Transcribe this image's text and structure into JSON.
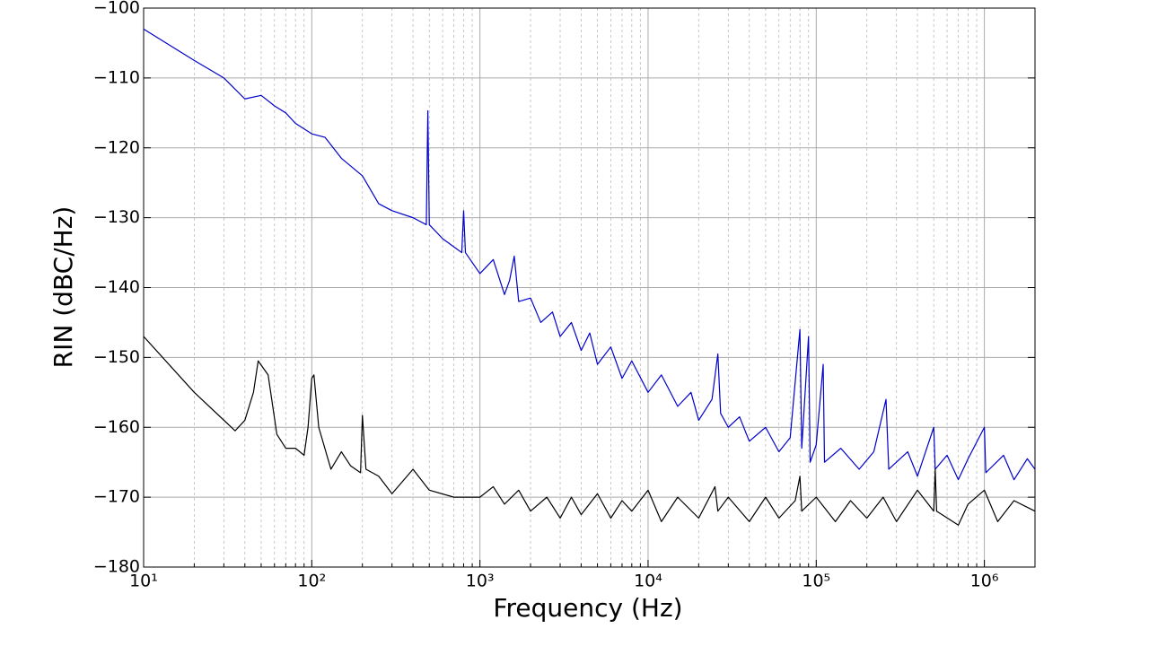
{
  "chart_data": {
    "type": "line",
    "xlabel": "Frequency (Hz)",
    "ylabel": "RIN (dBC/Hz)",
    "xscale": "log",
    "grid": true,
    "xlim": [
      10,
      2000000
    ],
    "ylim": [
      -180,
      -100
    ],
    "xticks": [
      {
        "value": 10,
        "label": "10¹"
      },
      {
        "value": 100,
        "label": "10²"
      },
      {
        "value": 1000,
        "label": "10³"
      },
      {
        "value": 10000,
        "label": "10⁴"
      },
      {
        "value": 100000,
        "label": "10⁵"
      },
      {
        "value": 1000000,
        "label": "10⁶"
      }
    ],
    "xminorticks": [
      20,
      30,
      40,
      50,
      60,
      70,
      80,
      90,
      200,
      300,
      400,
      500,
      600,
      700,
      800,
      900,
      2000,
      3000,
      4000,
      5000,
      6000,
      7000,
      8000,
      9000,
      20000,
      30000,
      40000,
      50000,
      60000,
      70000,
      80000,
      90000,
      200000,
      300000,
      400000,
      500000,
      600000,
      700000,
      800000,
      900000
    ],
    "yticks": [
      {
        "value": -100,
        "label": "−100"
      },
      {
        "value": -110,
        "label": "−110"
      },
      {
        "value": -120,
        "label": "−120"
      },
      {
        "value": -130,
        "label": "−130"
      },
      {
        "value": -140,
        "label": "−140"
      },
      {
        "value": -150,
        "label": "−150"
      },
      {
        "value": -160,
        "label": "−160"
      },
      {
        "value": -170,
        "label": "−170"
      },
      {
        "value": -180,
        "label": "−180"
      }
    ],
    "series": [
      {
        "color": "#0000cc",
        "x": [
          10,
          20,
          30,
          40,
          50,
          60,
          70,
          80,
          100,
          120,
          150,
          200,
          250,
          300,
          400,
          480,
          490,
          500,
          600,
          780,
          800,
          820,
          1000,
          1200,
          1400,
          1500,
          1600,
          1700,
          2000,
          2300,
          2700,
          3000,
          3500,
          4000,
          4500,
          5000,
          6000,
          7000,
          8000,
          10000,
          12000,
          15000,
          18000,
          20000,
          24000,
          26000,
          27000,
          30000,
          35000,
          40000,
          50000,
          60000,
          70000,
          80000,
          82000,
          90000,
          92000,
          100000,
          110000,
          112000,
          140000,
          180000,
          220000,
          260000,
          270000,
          350000,
          400000,
          500000,
          510000,
          600000,
          700000,
          800000,
          1000000,
          1020000,
          1300000,
          1500000,
          1800000,
          2000000
        ],
        "values": [
          -103,
          -107.5,
          -110,
          -113,
          -112.5,
          -114,
          -115,
          -116.5,
          -118,
          -118.5,
          -121.5,
          -124,
          -128,
          -129,
          -130,
          -131,
          -114.7,
          -131,
          -133,
          -135,
          -129,
          -135,
          -138,
          -136,
          -141,
          -139,
          -135.5,
          -142,
          -141.5,
          -145,
          -143.5,
          -147,
          -145,
          -149,
          -146.5,
          -151,
          -148.5,
          -153,
          -150.5,
          -155,
          -152.5,
          -157,
          -155,
          -159,
          -156,
          -149.5,
          -158,
          -160,
          -158.5,
          -162,
          -160,
          -163.5,
          -161.5,
          -146,
          -163,
          -147,
          -165,
          -162.5,
          -151,
          -165,
          -163,
          -166,
          -163.5,
          -156,
          -166,
          -163.5,
          -167,
          -160,
          -166,
          -164,
          -167.5,
          -164.5,
          -160,
          -166.5,
          -164,
          -167.5,
          -164.5,
          -166
        ]
      },
      {
        "color": "#000000",
        "x": [
          10,
          20,
          35,
          40,
          45,
          48,
          55,
          62,
          70,
          80,
          90,
          95,
          100,
          103,
          110,
          130,
          150,
          170,
          195,
          200,
          210,
          250,
          300,
          400,
          500,
          700,
          1000,
          1200,
          1400,
          1700,
          2000,
          2500,
          3000,
          3500,
          4000,
          5000,
          6000,
          7000,
          8000,
          10000,
          12000,
          15000,
          20000,
          25000,
          26000,
          30000,
          40000,
          50000,
          60000,
          75000,
          80000,
          82000,
          100000,
          130000,
          160000,
          200000,
          250000,
          300000,
          400000,
          500000,
          510000,
          520000,
          700000,
          800000,
          1000000,
          1200000,
          1500000,
          2000000
        ],
        "values": [
          -147,
          -155,
          -160.5,
          -159,
          -155,
          -150.5,
          -152.5,
          -161,
          -163,
          -163,
          -164,
          -160,
          -153,
          -152.5,
          -160,
          -166,
          -163.5,
          -165.5,
          -166.5,
          -158.3,
          -166,
          -167,
          -169.5,
          -166,
          -169,
          -170,
          -170,
          -168.5,
          -171,
          -169,
          -172,
          -170,
          -173,
          -170,
          -172.5,
          -169.5,
          -173,
          -170.5,
          -172,
          -169,
          -173.5,
          -170,
          -173,
          -168.5,
          -172,
          -170,
          -173.5,
          -170,
          -173,
          -170.5,
          -167,
          -172,
          -170,
          -173.5,
          -170.5,
          -173,
          -170,
          -173.5,
          -169,
          -172,
          -166,
          -172,
          -174,
          -171,
          -169,
          -173.5,
          -170.5,
          -172
        ]
      }
    ]
  }
}
